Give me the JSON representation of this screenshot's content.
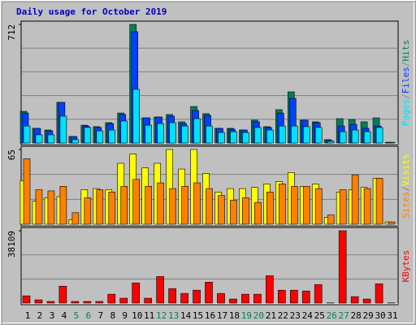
{
  "chart_data": [
    {
      "type": "bar",
      "title": "Daily usage for October 2019",
      "title_color": "#0000c0",
      "ylim": [
        0,
        712
      ],
      "yticks": [
        712
      ],
      "legend_separator": "/",
      "separator_color": "#808080",
      "series": [
        {
          "name": "Hits",
          "color": "#00805c",
          "values": [
            190,
            88,
            78,
            244,
            39,
            107,
            98,
            122,
            180,
            712,
            151,
            156,
            171,
            127,
            219,
            176,
            88,
            88,
            78,
            137,
            98,
            200,
            307,
            137,
            127,
            20,
            146,
            141,
            127,
            151,
            4
          ]
        },
        {
          "name": "Files",
          "color": "#0040ff",
          "values": [
            180,
            88,
            73,
            244,
            39,
            102,
            93,
            117,
            171,
            668,
            151,
            156,
            161,
            117,
            195,
            166,
            88,
            83,
            78,
            127,
            93,
            180,
            268,
            137,
            122,
            15,
            102,
            112,
            88,
            102,
            4
          ]
        },
        {
          "name": "Pages",
          "color": "#00e0ff",
          "values": [
            102,
            49,
            49,
            161,
            20,
            93,
            73,
            78,
            132,
            322,
            107,
            117,
            122,
            102,
            146,
            102,
            63,
            68,
            63,
            93,
            78,
            102,
            102,
            98,
            93,
            10,
            68,
            78,
            68,
            93,
            4
          ]
        }
      ]
    },
    {
      "type": "bar",
      "ylim": [
        0,
        65
      ],
      "yticks": [
        65
      ],
      "legend_separator": "/",
      "separator_color": "#808080",
      "series": [
        {
          "name": "Visits",
          "color": "#ffff00",
          "values": [
            38,
            20,
            23,
            24,
            4,
            30,
            31,
            30,
            53,
            61,
            49,
            53,
            65,
            48,
            65,
            44,
            28,
            31,
            31,
            32,
            35,
            37,
            45,
            33,
            35,
            6,
            28,
            30,
            32,
            40,
            2
          ]
        },
        {
          "name": "Sites",
          "color": "#ff8000",
          "values": [
            57,
            30,
            29,
            33,
            10,
            23,
            30,
            28,
            33,
            39,
            33,
            36,
            31,
            33,
            36,
            31,
            25,
            21,
            23,
            19,
            28,
            35,
            33,
            33,
            31,
            8,
            30,
            43,
            31,
            40,
            2
          ]
        }
      ]
    },
    {
      "type": "bar",
      "ylim": [
        0,
        38109
      ],
      "yticks": [
        38109
      ],
      "categories": [
        "1",
        "2",
        "3",
        "4",
        "5",
        "6",
        "7",
        "8",
        "9",
        "10",
        "11",
        "12",
        "13",
        "14",
        "15",
        "16",
        "17",
        "18",
        "19",
        "20",
        "21",
        "22",
        "23",
        "24",
        "25",
        "26",
        "27",
        "28",
        "29",
        "30",
        "31"
      ],
      "category_colors": [
        "#000000",
        "#000000",
        "#000000",
        "#000000",
        "#00805c",
        "#00805c",
        "#000000",
        "#000000",
        "#000000",
        "#000000",
        "#000000",
        "#00805c",
        "#00805c",
        "#000000",
        "#000000",
        "#000000",
        "#000000",
        "#000000",
        "#00805c",
        "#00805c",
        "#000000",
        "#000000",
        "#000000",
        "#000000",
        "#000000",
        "#00805c",
        "#00805c",
        "#000000",
        "#000000",
        "#000000",
        "#000000"
      ],
      "series": [
        {
          "name": "KBytes",
          "color": "#ff0000",
          "values": [
            3811,
            1694,
            847,
            8891,
            847,
            847,
            847,
            4658,
            2541,
            10585,
            2541,
            13970,
            7622,
            5081,
            6775,
            11008,
            5081,
            2117,
            4658,
            4658,
            14393,
            6775,
            6775,
            6352,
            9738,
            100,
            38109,
            3388,
            2117,
            10162,
            100
          ]
        }
      ]
    }
  ]
}
